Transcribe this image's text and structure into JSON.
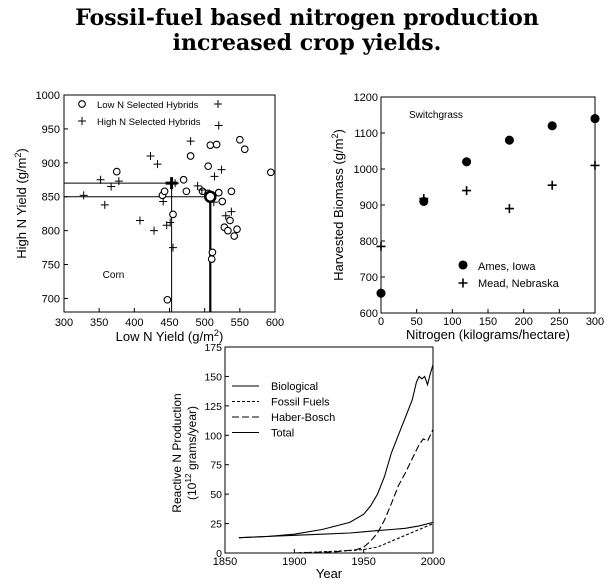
{
  "figure": {
    "title_line1": "Fossil-fuel based nitrogen production",
    "title_line2": "increased crop yields."
  },
  "chart_data": [
    {
      "type": "scatter",
      "xlabel": "Low N Yield (g/m²)",
      "ylabel": "High N Yield (g/m²)",
      "xlim": [
        300,
        600
      ],
      "ylim": [
        680,
        1000
      ],
      "xticks": [
        300,
        350,
        400,
        450,
        500,
        550,
        600
      ],
      "yticks": [
        700,
        750,
        800,
        850,
        900,
        950,
        1000
      ],
      "annotation": "Corn",
      "legend": [
        "Low N Selected Hybrids",
        "High N Selected Hybrids"
      ],
      "legend_position": "top-left",
      "series": [
        {
          "name": "Low N Selected Hybrids",
          "marker": "circle",
          "points": [
            [
              375,
              887
            ],
            [
              440,
              852
            ],
            [
              443,
              858
            ],
            [
              455,
              824
            ],
            [
              447,
              698
            ],
            [
              470,
              875
            ],
            [
              474,
              858
            ],
            [
              480,
              910
            ],
            [
              497,
              858
            ],
            [
              505,
              855
            ],
            [
              505,
              895
            ],
            [
              507,
              852
            ],
            [
              508,
              926
            ],
            [
              510,
              758
            ],
            [
              511,
              768
            ],
            [
              517,
              927
            ],
            [
              520,
              856
            ],
            [
              525,
              843
            ],
            [
              528,
              805
            ],
            [
              533,
              800
            ],
            [
              536,
              815
            ],
            [
              538,
              858
            ],
            [
              542,
              792
            ],
            [
              546,
              802
            ],
            [
              550,
              934
            ],
            [
              557,
              920
            ],
            [
              594,
              886
            ]
          ]
        },
        {
          "name": "High N Selected Hybrids",
          "marker": "plus",
          "points": [
            [
              328,
              852
            ],
            [
              352,
              875
            ],
            [
              358,
              838
            ],
            [
              367,
              865
            ],
            [
              378,
              873
            ],
            [
              408,
              815
            ],
            [
              423,
              910
            ],
            [
              428,
              800
            ],
            [
              433,
              898
            ],
            [
              441,
              843
            ],
            [
              446,
              808
            ],
            [
              451,
              812
            ],
            [
              455,
              775
            ],
            [
              458,
              870
            ],
            [
              480,
              932
            ],
            [
              490,
              866
            ],
            [
              496,
              860
            ],
            [
              513,
              842
            ],
            [
              514,
              880
            ],
            [
              520,
              955
            ],
            [
              524,
              890
            ],
            [
              530,
              822
            ],
            [
              538,
              828
            ]
          ]
        }
      ],
      "highlights": {
        "low_n_selected_mean": [
          508,
          850
        ],
        "high_n_selected_mean": [
          453,
          870
        ]
      }
    },
    {
      "type": "scatter",
      "xlabel": "Nitrogen (kilograms/hectare)",
      "ylabel": "Harvested Biomass (g/m²)",
      "xlim": [
        0,
        300
      ],
      "ylim": [
        600,
        1200
      ],
      "xticks": [
        0,
        50,
        100,
        150,
        200,
        250,
        300
      ],
      "yticks": [
        600,
        700,
        800,
        900,
        1000,
        1100,
        1200
      ],
      "annotation": "Switchgrass",
      "legend_position": "bottom-right",
      "series": [
        {
          "name": "Ames, Iowa",
          "marker": "filled-circle",
          "points": [
            [
              0,
              655
            ],
            [
              60,
              910
            ],
            [
              120,
              1020
            ],
            [
              180,
              1080
            ],
            [
              240,
              1120
            ],
            [
              300,
              1140
            ]
          ]
        },
        {
          "name": "Mead, Nebraska",
          "marker": "plus",
          "points": [
            [
              0,
              785
            ],
            [
              60,
              918
            ],
            [
              120,
              940
            ],
            [
              180,
              890
            ],
            [
              240,
              955
            ],
            [
              300,
              1010
            ]
          ]
        }
      ]
    },
    {
      "type": "line",
      "xlabel": "Year",
      "ylabel": "Reactive N Production (10¹² grams/year)",
      "xlim": [
        1850,
        2000
      ],
      "ylim": [
        0,
        175
      ],
      "xticks": [
        1850,
        1900,
        1950,
        2000
      ],
      "yticks": [
        0,
        25,
        50,
        75,
        100,
        125,
        150,
        175
      ],
      "legend_position": "top-left",
      "series": [
        {
          "name": "Biological",
          "style": "solid",
          "x": [
            1860,
            1880,
            1900,
            1920,
            1940,
            1950,
            1960,
            1970,
            1980,
            1990,
            2000
          ],
          "y": [
            13,
            14,
            15,
            16,
            17,
            18,
            19,
            20,
            21,
            23,
            26
          ]
        },
        {
          "name": "Fossil Fuels",
          "style": "short-dash",
          "x": [
            1860,
            1900,
            1920,
            1940,
            1950,
            1960,
            1970,
            1980,
            1990,
            2000
          ],
          "y": [
            0,
            0,
            1,
            2,
            3,
            5,
            10,
            15,
            20,
            25
          ]
        },
        {
          "name": "Haber-Bosch",
          "style": "long-dash",
          "x": [
            1900,
            1915,
            1930,
            1945,
            1950,
            1955,
            1960,
            1965,
            1970,
            1975,
            1980,
            1985,
            1990,
            1993,
            1996,
            2000
          ],
          "y": [
            0,
            0.5,
            1,
            3,
            5,
            10,
            17,
            28,
            42,
            57,
            68,
            80,
            92,
            97,
            95,
            105
          ]
        },
        {
          "name": "Total",
          "style": "solid",
          "x": [
            1860,
            1880,
            1900,
            1920,
            1940,
            1950,
            1955,
            1960,
            1965,
            1970,
            1975,
            1980,
            1985,
            1988,
            1990,
            1992,
            1994,
            1996,
            1998,
            2000
          ],
          "y": [
            13,
            14,
            16,
            20,
            26,
            33,
            40,
            50,
            65,
            85,
            100,
            115,
            130,
            145,
            150,
            148,
            150,
            143,
            152,
            160
          ]
        }
      ]
    }
  ]
}
